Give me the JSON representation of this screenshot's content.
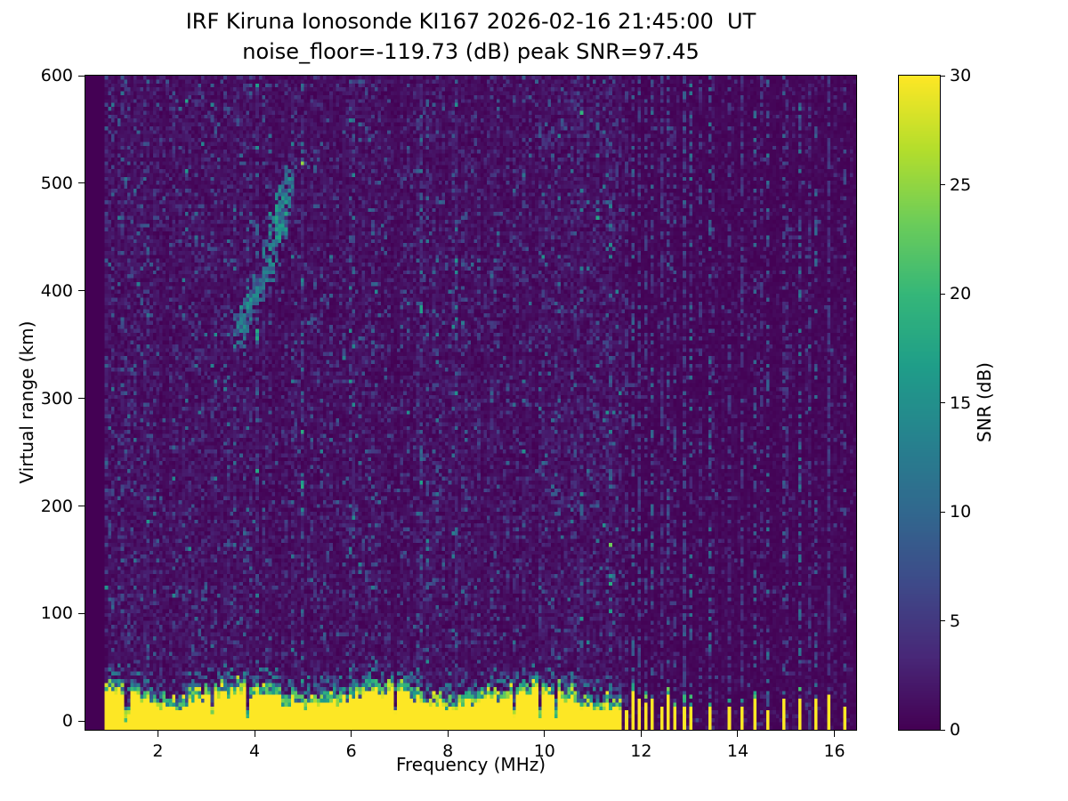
{
  "figure": {
    "title_line1": "IRF Kiruna Ionosonde KI167 2026-02-16 21:45:00  UT",
    "title_line2": "noise_floor=-119.73 (dB) peak SNR=97.45",
    "xlabel": "Frequency (MHz)",
    "ylabel": "Virtual range (km)",
    "colorbar_label": "SNR (dB)"
  },
  "chart_data": {
    "type": "heatmap",
    "title": "IRF Kiruna Ionosonde KI167 2026-02-16 21:45:00  UT",
    "subtitle": "noise_floor=-119.73 (dB) peak SNR=97.45",
    "station": "IRF Kiruna Ionosonde KI167",
    "timestamp_ut": "2026-02-16 21:45:00",
    "noise_floor_db": -119.73,
    "peak_snr_db": 97.45,
    "xlabel": "Frequency (MHz)",
    "ylabel": "Virtual range (km)",
    "colormap": "viridis",
    "xlim": [
      0.5,
      16.45
    ],
    "ylim": [
      -8,
      600
    ],
    "xticks": [
      2,
      4,
      6,
      8,
      10,
      12,
      14,
      16
    ],
    "yticks": [
      0,
      100,
      200,
      300,
      400,
      500,
      600
    ],
    "colorbar": {
      "label": "SNR (dB)",
      "min": 0,
      "max": 30,
      "ticks": [
        0,
        5,
        10,
        15,
        20,
        25,
        30
      ]
    },
    "seed": 7,
    "features": {
      "sweep_mhz": [
        0.88,
        11.62
      ],
      "ground_clutter": {
        "freq_range_mhz": [
          0.88,
          11.62
        ],
        "range_km": [
          0,
          35
        ],
        "snr_db": 30
      },
      "interference_stripes_mhz": [
        11.68,
        11.82,
        11.95,
        12.1,
        12.25,
        12.4,
        12.55,
        12.72,
        12.9,
        13.05,
        13.45,
        13.8,
        14.1,
        14.35,
        14.65,
        14.95,
        15.3,
        15.6,
        15.9,
        16.2
      ],
      "noisy_columns_mhz": [
        11.95,
        12.4,
        12.9,
        13.2,
        13.5,
        14.1,
        14.5,
        15.05,
        15.5,
        15.9
      ],
      "ionospheric_trace": [
        {
          "f": 3.72,
          "r": 362,
          "df": 0.13,
          "dr": 16,
          "snr": 12
        },
        {
          "f": 3.84,
          "r": 378,
          "df": 0.13,
          "dr": 16,
          "snr": 14
        },
        {
          "f": 3.95,
          "r": 392,
          "df": 0.12,
          "dr": 14,
          "snr": 13
        },
        {
          "f": 4.08,
          "r": 403,
          "df": 0.11,
          "dr": 12,
          "snr": 11
        },
        {
          "f": 4.3,
          "r": 427,
          "df": 0.12,
          "dr": 20,
          "snr": 12
        },
        {
          "f": 4.42,
          "r": 448,
          "df": 0.12,
          "dr": 24,
          "snr": 14
        },
        {
          "f": 4.53,
          "r": 468,
          "df": 0.13,
          "dr": 24,
          "snr": 15
        },
        {
          "f": 4.63,
          "r": 487,
          "df": 0.11,
          "dr": 18,
          "snr": 13
        },
        {
          "f": 4.73,
          "r": 500,
          "df": 0.1,
          "dr": 12,
          "snr": 11
        },
        {
          "f": 2.95,
          "r": 120,
          "df": 0.09,
          "dr": 9,
          "snr": 10
        }
      ],
      "background_noise_snr_db": [
        0,
        5
      ]
    }
  }
}
